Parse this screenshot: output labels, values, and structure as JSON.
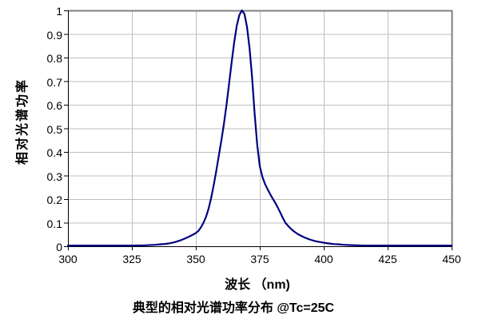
{
  "chart_data": {
    "type": "line",
    "title": "典型的相对光谱功率分布 @Tc=25C",
    "xlabel": "波长 （nm)",
    "ylabel": "相对光谱功率",
    "xlim": [
      300,
      450
    ],
    "ylim": [
      0,
      1
    ],
    "x_ticks": [
      300,
      325,
      350,
      375,
      400,
      425,
      450
    ],
    "y_ticks": [
      "1",
      "0.9",
      "0.8",
      "0.7",
      "0.6",
      "0.5",
      "0.4",
      "0.3",
      "0.2",
      "0.1",
      "0"
    ],
    "grid": true,
    "legend": "none",
    "peak_wavelength_nm": 368,
    "series": [
      {
        "name": "相对光谱功率",
        "color": "#000080",
        "points": [
          [
            300,
            0.003
          ],
          [
            305,
            0.003
          ],
          [
            310,
            0.003
          ],
          [
            315,
            0.003
          ],
          [
            320,
            0.003
          ],
          [
            325,
            0.003
          ],
          [
            330,
            0.004
          ],
          [
            334,
            0.006
          ],
          [
            336,
            0.008
          ],
          [
            338,
            0.01
          ],
          [
            340,
            0.013
          ],
          [
            342,
            0.018
          ],
          [
            344,
            0.025
          ],
          [
            346,
            0.034
          ],
          [
            348,
            0.044
          ],
          [
            350,
            0.056
          ],
          [
            351,
            0.065
          ],
          [
            352,
            0.08
          ],
          [
            353,
            0.1
          ],
          [
            354,
            0.125
          ],
          [
            355,
            0.16
          ],
          [
            356,
            0.205
          ],
          [
            357,
            0.26
          ],
          [
            358,
            0.32
          ],
          [
            359,
            0.385
          ],
          [
            360,
            0.45
          ],
          [
            361,
            0.52
          ],
          [
            362,
            0.6
          ],
          [
            363,
            0.69
          ],
          [
            364,
            0.78
          ],
          [
            365,
            0.865
          ],
          [
            366,
            0.935
          ],
          [
            367,
            0.98
          ],
          [
            368,
            1.0
          ],
          [
            369,
            0.985
          ],
          [
            370,
            0.93
          ],
          [
            371,
            0.84
          ],
          [
            372,
            0.715
          ],
          [
            373,
            0.56
          ],
          [
            374,
            0.43
          ],
          [
            375,
            0.34
          ],
          [
            376,
            0.295
          ],
          [
            377,
            0.265
          ],
          [
            378,
            0.243
          ],
          [
            379,
            0.222
          ],
          [
            380,
            0.203
          ],
          [
            381,
            0.185
          ],
          [
            382,
            0.165
          ],
          [
            383,
            0.143
          ],
          [
            384,
            0.12
          ],
          [
            385,
            0.1
          ],
          [
            386,
            0.087
          ],
          [
            387,
            0.076
          ],
          [
            388,
            0.066
          ],
          [
            389,
            0.058
          ],
          [
            390,
            0.051
          ],
          [
            391,
            0.045
          ],
          [
            392,
            0.04
          ],
          [
            393,
            0.035
          ],
          [
            394,
            0.031
          ],
          [
            395,
            0.027
          ],
          [
            396,
            0.024
          ],
          [
            397,
            0.021
          ],
          [
            398,
            0.019
          ],
          [
            399,
            0.017
          ],
          [
            400,
            0.015
          ],
          [
            402,
            0.012
          ],
          [
            404,
            0.009
          ],
          [
            406,
            0.008
          ],
          [
            408,
            0.006
          ],
          [
            410,
            0.005
          ],
          [
            413,
            0.004
          ],
          [
            416,
            0.003
          ],
          [
            420,
            0.003
          ],
          [
            425,
            0.003
          ],
          [
            430,
            0.003
          ],
          [
            435,
            0.003
          ],
          [
            440,
            0.003
          ],
          [
            445,
            0.003
          ],
          [
            450,
            0.003
          ]
        ]
      }
    ]
  },
  "colors": {
    "curve": "#000080",
    "gridline": "#BFBFBF",
    "plot_border": "#808080",
    "axis": "#000000",
    "text": "#000000",
    "background": "#FFFFFF"
  }
}
